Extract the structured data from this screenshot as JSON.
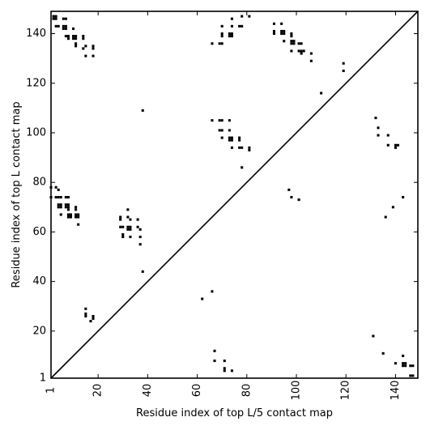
{
  "chart_data": {
    "type": "scatter",
    "xlabel": "Residue index of top L/5 contact map",
    "ylabel": "Residue index of top L contact map",
    "xlim": [
      1,
      149
    ],
    "ylim": [
      1,
      149
    ],
    "x_ticks": [
      1,
      20,
      40,
      60,
      80,
      100,
      120,
      140
    ],
    "y_ticks": [
      1,
      20,
      40,
      60,
      80,
      100,
      120,
      140
    ],
    "diagonal": true,
    "grid": false,
    "upper_triangle_points": [
      [
        2,
        146
      ],
      [
        2,
        147
      ],
      [
        3,
        146
      ],
      [
        3,
        147
      ],
      [
        6,
        146
      ],
      [
        7,
        146
      ],
      [
        3,
        143
      ],
      [
        4,
        143
      ],
      [
        6,
        142
      ],
      [
        7,
        142
      ],
      [
        6,
        143
      ],
      [
        7,
        143
      ],
      [
        10,
        142
      ],
      [
        7,
        139
      ],
      [
        8,
        139
      ],
      [
        8,
        138
      ],
      [
        10,
        138
      ],
      [
        11,
        138
      ],
      [
        10,
        139
      ],
      [
        11,
        139
      ],
      [
        14,
        138
      ],
      [
        14,
        139
      ],
      [
        11,
        136
      ],
      [
        11,
        135
      ],
      [
        14,
        134
      ],
      [
        15,
        135
      ],
      [
        18,
        135
      ],
      [
        18,
        134
      ],
      [
        15,
        131
      ],
      [
        18,
        131
      ],
      [
        38,
        109
      ],
      [
        66,
        136
      ],
      [
        69,
        136
      ],
      [
        70,
        136
      ],
      [
        70,
        139
      ],
      [
        70,
        140
      ],
      [
        70,
        143
      ],
      [
        73,
        139
      ],
      [
        74,
        139
      ],
      [
        73,
        140
      ],
      [
        74,
        140
      ],
      [
        74,
        143
      ],
      [
        74,
        146
      ],
      [
        77,
        143
      ],
      [
        78,
        143
      ],
      [
        78,
        147
      ],
      [
        81,
        147
      ],
      [
        66,
        105
      ],
      [
        69,
        105
      ],
      [
        70,
        105
      ],
      [
        73,
        105
      ],
      [
        69,
        101
      ],
      [
        70,
        101
      ],
      [
        73,
        101
      ],
      [
        70,
        98
      ],
      [
        73,
        97
      ],
      [
        74,
        97
      ],
      [
        73,
        98
      ],
      [
        74,
        98
      ],
      [
        77,
        98
      ],
      [
        77,
        97
      ],
      [
        74,
        94
      ],
      [
        77,
        94
      ],
      [
        78,
        94
      ],
      [
        81,
        94
      ],
      [
        81,
        93
      ],
      [
        78,
        86
      ],
      [
        91,
        144
      ],
      [
        94,
        144
      ],
      [
        91,
        141
      ],
      [
        91,
        140
      ],
      [
        94,
        141
      ],
      [
        95,
        141
      ],
      [
        94,
        140
      ],
      [
        95,
        140
      ],
      [
        95,
        137
      ],
      [
        98,
        137
      ],
      [
        98,
        139
      ],
      [
        98,
        140
      ],
      [
        99,
        137
      ],
      [
        99,
        136
      ],
      [
        98,
        136
      ],
      [
        98,
        133
      ],
      [
        101,
        136
      ],
      [
        102,
        136
      ],
      [
        101,
        133
      ],
      [
        102,
        133
      ],
      [
        102,
        132
      ],
      [
        103,
        133
      ],
      [
        106,
        132
      ],
      [
        106,
        129
      ],
      [
        110,
        116
      ],
      [
        119,
        128
      ],
      [
        119,
        125
      ],
      [
        132,
        106
      ],
      [
        133,
        102
      ],
      [
        133,
        99
      ],
      [
        137,
        99
      ],
      [
        137,
        95
      ],
      [
        140,
        95
      ],
      [
        141,
        95
      ],
      [
        140,
        94
      ]
    ],
    "lower_triangle_points": [
      [
        1,
        78
      ],
      [
        3,
        78
      ],
      [
        4,
        77
      ],
      [
        1,
        74
      ],
      [
        3,
        74
      ],
      [
        4,
        74
      ],
      [
        5,
        74
      ],
      [
        7,
        74
      ],
      [
        8,
        74
      ],
      [
        4,
        71
      ],
      [
        4,
        70
      ],
      [
        5,
        71
      ],
      [
        5,
        70
      ],
      [
        7,
        71
      ],
      [
        7,
        70
      ],
      [
        8,
        71
      ],
      [
        8,
        70
      ],
      [
        11,
        70
      ],
      [
        11,
        69
      ],
      [
        8,
        69
      ],
      [
        5,
        67
      ],
      [
        8,
        67
      ],
      [
        9,
        67
      ],
      [
        8,
        66
      ],
      [
        9,
        66
      ],
      [
        11,
        67
      ],
      [
        11,
        66
      ],
      [
        12,
        66
      ],
      [
        12,
        67
      ],
      [
        12,
        63
      ],
      [
        15,
        29
      ],
      [
        15,
        27
      ],
      [
        15,
        26
      ],
      [
        18,
        26
      ],
      [
        18,
        25
      ],
      [
        17,
        24
      ],
      [
        29,
        66
      ],
      [
        29,
        65
      ],
      [
        32,
        69
      ],
      [
        32,
        66
      ],
      [
        33,
        65
      ],
      [
        36,
        65
      ],
      [
        29,
        62
      ],
      [
        30,
        62
      ],
      [
        32,
        62
      ],
      [
        33,
        62
      ],
      [
        32,
        61
      ],
      [
        33,
        61
      ],
      [
        36,
        62
      ],
      [
        37,
        61
      ],
      [
        30,
        59
      ],
      [
        30,
        58
      ],
      [
        33,
        58
      ],
      [
        37,
        58
      ],
      [
        37,
        55
      ],
      [
        38,
        44
      ],
      [
        62,
        33
      ],
      [
        66,
        36
      ],
      [
        67,
        12
      ],
      [
        67,
        8
      ],
      [
        71,
        8
      ],
      [
        71,
        5
      ],
      [
        71,
        4
      ],
      [
        74,
        4
      ],
      [
        97,
        77
      ],
      [
        98,
        74
      ],
      [
        101,
        73
      ],
      [
        131,
        18
      ],
      [
        135,
        11
      ],
      [
        136,
        66
      ],
      [
        139,
        70
      ],
      [
        140,
        7
      ],
      [
        143,
        10
      ],
      [
        143,
        74
      ],
      [
        143,
        7
      ],
      [
        143,
        6
      ],
      [
        144,
        7
      ],
      [
        144,
        6
      ],
      [
        146,
        6
      ],
      [
        147,
        6
      ],
      [
        146,
        2
      ],
      [
        147,
        2
      ]
    ]
  }
}
